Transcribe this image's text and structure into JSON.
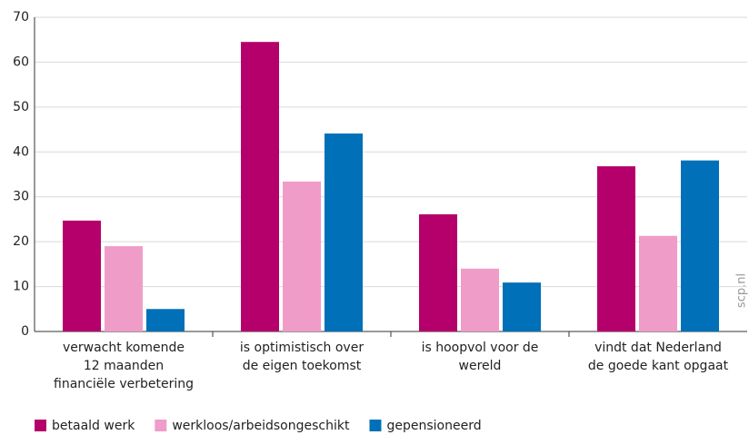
{
  "chart_data": {
    "type": "bar",
    "categories": [
      [
        "verwacht komende",
        "12 maanden",
        "financiële verbetering"
      ],
      [
        "is optimistisch over",
        "de eigen toekomst"
      ],
      [
        "is hoopvol voor de",
        "wereld"
      ],
      [
        "vindt dat Nederland",
        "de goede kant opgaat"
      ]
    ],
    "series": [
      {
        "name": "betaald werk",
        "color": "#b5006b",
        "values": [
          24.7,
          64.5,
          26.1,
          36.8
        ]
      },
      {
        "name": "werkloos/arbeidsongeschikt",
        "color": "#f09cc8",
        "values": [
          19,
          33.4,
          14,
          21.3
        ]
      },
      {
        "name": "gepensioneerd",
        "color": "#0070b8",
        "values": [
          5,
          44.1,
          10.9,
          38.1
        ]
      }
    ],
    "ylim": [
      0,
      70
    ],
    "yticks": [
      0,
      10,
      20,
      30,
      40,
      50,
      60,
      70
    ],
    "grid": true,
    "legend": "bottom",
    "watermark": "scp.nl"
  }
}
